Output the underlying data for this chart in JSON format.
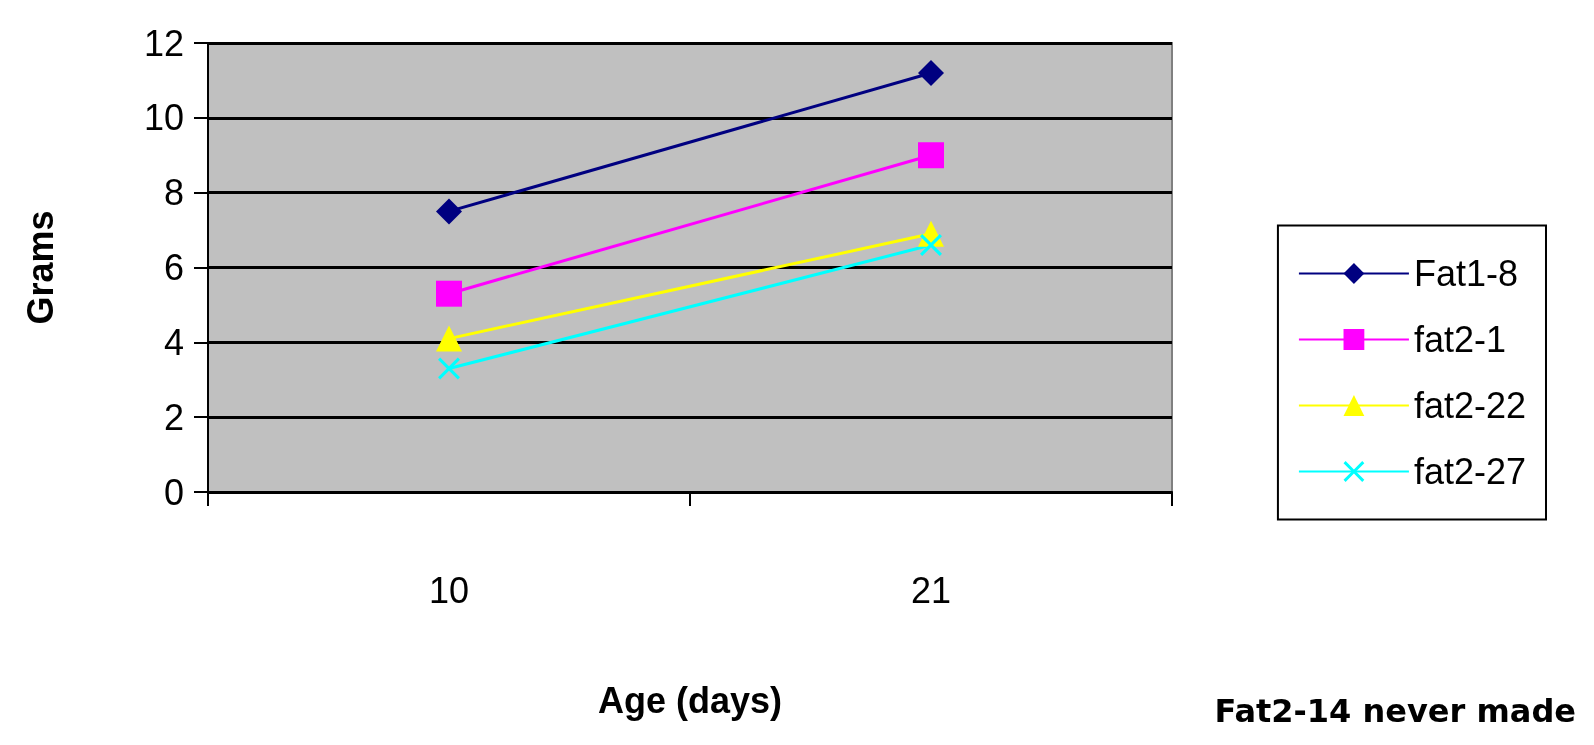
{
  "chart_data": {
    "type": "line",
    "xlabel": "Age (days)",
    "ylabel": "Grams",
    "categories": [
      "10",
      "21"
    ],
    "ylim": [
      0,
      12
    ],
    "yticks": [
      0,
      2,
      4,
      6,
      8,
      10,
      12
    ],
    "grid": "y",
    "legend": "right",
    "annotations": [
      "Fat2-14 never made"
    ],
    "series": [
      {
        "name": "Fat1-8",
        "color": "#000080",
        "marker": "diamond",
        "values": [
          7.5,
          11.2
        ]
      },
      {
        "name": "fat2-1",
        "color": "#ff00ff",
        "marker": "square",
        "values": [
          5.3,
          9.0
        ]
      },
      {
        "name": "fat2-22",
        "color": "#ffff00",
        "marker": "triangle",
        "values": [
          4.1,
          6.9
        ]
      },
      {
        "name": "fat2-27",
        "color": "#00ffff",
        "marker": "cross",
        "values": [
          3.3,
          6.6
        ]
      }
    ]
  }
}
